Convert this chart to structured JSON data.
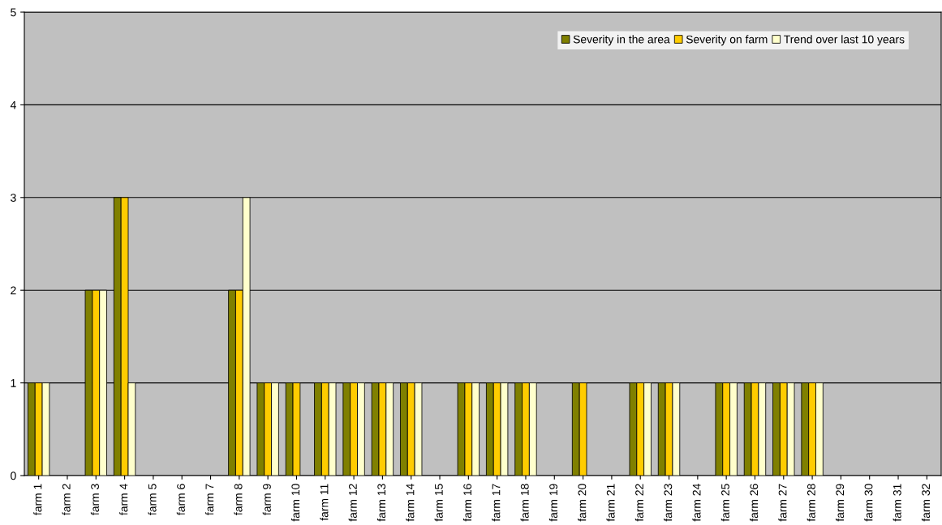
{
  "chart_data": {
    "type": "bar",
    "categories": [
      "farm 1",
      "farm 2",
      "farm 3",
      "farm 4",
      "farm 5",
      "farm 6",
      "farm 7",
      "farm 8",
      "farm 9",
      "farm 10",
      "farm 11",
      "farm 12",
      "farm 13",
      "farm 14",
      "farm 15",
      "farm 16",
      "farm 17",
      "farm 18",
      "farm 19",
      "farm 20",
      "farm 21",
      "farm 22",
      "farm 23",
      "farm 24",
      "farm 25",
      "farm 26",
      "farm 27",
      "farm 28",
      "farm 29",
      "farm 30",
      "farm 31",
      "farm 32"
    ],
    "series": [
      {
        "name": "Severity in the area",
        "color": "#808000",
        "values": [
          1,
          null,
          2,
          3,
          null,
          null,
          null,
          2,
          1,
          1,
          1,
          1,
          1,
          1,
          null,
          1,
          1,
          1,
          null,
          1,
          null,
          1,
          1,
          null,
          1,
          1,
          1,
          1,
          null,
          null,
          null,
          null
        ]
      },
      {
        "name": "Severity on farm",
        "color": "#ffcc00",
        "values": [
          1,
          null,
          2,
          3,
          null,
          null,
          null,
          2,
          1,
          1,
          1,
          1,
          1,
          1,
          null,
          1,
          1,
          1,
          null,
          1,
          null,
          1,
          1,
          null,
          1,
          1,
          1,
          1,
          null,
          null,
          null,
          null
        ]
      },
      {
        "name": "Trend over last 10 years",
        "color": "#ffffcc",
        "values": [
          1,
          null,
          2,
          1,
          null,
          null,
          null,
          3,
          1,
          null,
          1,
          1,
          1,
          1,
          null,
          1,
          1,
          1,
          null,
          null,
          null,
          1,
          1,
          null,
          1,
          1,
          1,
          1,
          null,
          null,
          null,
          null
        ]
      }
    ],
    "ylim": [
      0,
      5
    ],
    "yticks": [
      0,
      1,
      2,
      3,
      4,
      5
    ],
    "grid": "y",
    "legend": "top right"
  }
}
